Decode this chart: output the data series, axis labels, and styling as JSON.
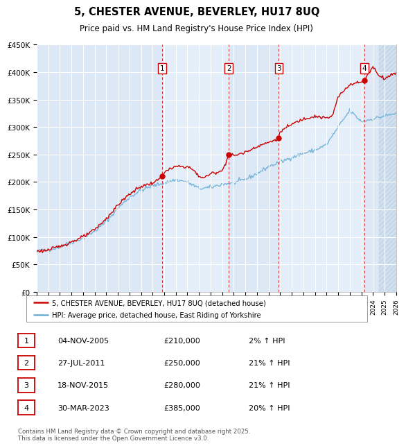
{
  "title": "5, CHESTER AVENUE, BEVERLEY, HU17 8UQ",
  "subtitle": "Price paid vs. HM Land Registry's House Price Index (HPI)",
  "background_color": "#ffffff",
  "plot_bg_color": "#dce8f5",
  "plot_bg_color2": "#eaf2fb",
  "grid_color": "#ffffff",
  "line1_color": "#cc0000",
  "line2_color": "#6baed6",
  "hatch_color": "#c8d8ea",
  "legend1_label": "5, CHESTER AVENUE, BEVERLEY, HU17 8UQ (detached house)",
  "legend2_label": "HPI: Average price, detached house, East Riding of Yorkshire",
  "sale_dates": [
    2005.84,
    2011.57,
    2015.88,
    2023.25
  ],
  "sale_prices": [
    210000,
    250000,
    280000,
    385000
  ],
  "sale_labels": [
    "1",
    "2",
    "3",
    "4"
  ],
  "table_entries": [
    {
      "num": "1",
      "date": "04-NOV-2005",
      "price": "£210,000",
      "pct": "2% ↑ HPI"
    },
    {
      "num": "2",
      "date": "27-JUL-2011",
      "price": "£250,000",
      "pct": "21% ↑ HPI"
    },
    {
      "num": "3",
      "date": "18-NOV-2015",
      "price": "£280,000",
      "pct": "21% ↑ HPI"
    },
    {
      "num": "4",
      "date": "30-MAR-2023",
      "price": "£385,000",
      "pct": "20% ↑ HPI"
    }
  ],
  "footer": "Contains HM Land Registry data © Crown copyright and database right 2025.\nThis data is licensed under the Open Government Licence v3.0.",
  "xmin": 1995,
  "xmax": 2026,
  "ymin": 0,
  "ymax": 450000,
  "yticks": [
    0,
    50000,
    100000,
    150000,
    200000,
    250000,
    300000,
    350000,
    400000,
    450000
  ],
  "future_start": 2024.5
}
